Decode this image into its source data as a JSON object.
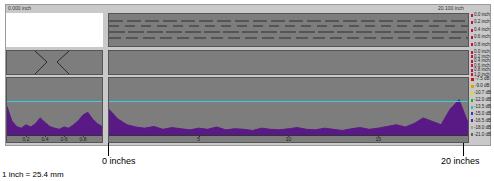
{
  "header": {
    "left": "0.000 inch",
    "right": "20.100 inch"
  },
  "scales": {
    "top": [
      "0.0 inch",
      "0.2 inch",
      "0.4 inch",
      "0.6 inch",
      "0.8 inch"
    ],
    "middle": [
      "0.0 inch",
      "0.2 inch",
      "0.4 inch",
      "0.6 inch",
      "0.8 inch",
      "1.0 inch"
    ],
    "bottom": [
      "-7.5 dB",
      "-9.0 dB",
      "-10.7 dB",
      "-12.0 dB",
      "-13.5 dB",
      "-15.0 dB",
      "-16.5 dB",
      "-18.0 dB",
      "-21.0 dB"
    ]
  },
  "annotations": {
    "start": "0 inches",
    "end": "20 inches",
    "conversion": "1 inch = 25.4 mm"
  },
  "chart_data": [
    {
      "type": "line",
      "x": [
        0,
        0.05,
        0.1,
        0.15,
        0.2,
        0.25,
        0.3,
        0.35,
        0.4,
        0.45,
        0.5,
        0.55,
        0.6,
        0.65,
        0.7,
        0.75,
        0.8,
        0.85,
        0.9,
        0.95,
        1.0
      ],
      "values": [
        50,
        25,
        15,
        12,
        18,
        14,
        20,
        30,
        22,
        15,
        12,
        10,
        14,
        12,
        18,
        25,
        35,
        40,
        28,
        20,
        15
      ],
      "xlim": [
        0,
        1
      ],
      "xticks": [
        0.2,
        0.4,
        0.6,
        0.8
      ],
      "ylim": [
        0,
        100
      ],
      "threshold": 60,
      "color": "#5a1a86",
      "tick_labels": "x"
    },
    {
      "type": "line",
      "x": [
        0,
        0.5,
        1,
        1.5,
        2,
        2.5,
        3,
        3.5,
        4,
        4.5,
        5,
        5.5,
        6,
        6.5,
        7,
        7.5,
        8,
        8.5,
        9,
        9.5,
        10,
        10.5,
        11,
        11.5,
        12,
        12.5,
        13,
        13.5,
        14,
        14.5,
        15,
        15.5,
        16,
        16.5,
        17,
        17.5,
        18,
        18.5,
        19,
        19.5,
        20
      ],
      "values": [
        45,
        28,
        18,
        14,
        12,
        15,
        10,
        13,
        11,
        9,
        12,
        10,
        14,
        9,
        11,
        10,
        8,
        12,
        10,
        9,
        11,
        13,
        10,
        9,
        12,
        10,
        8,
        11,
        13,
        10,
        12,
        15,
        18,
        14,
        20,
        30,
        24,
        18,
        45,
        62,
        22
      ],
      "xlim": [
        0,
        20
      ],
      "xticks": [
        5,
        10,
        15
      ],
      "ylim": [
        0,
        100
      ],
      "threshold": 60,
      "color": "#5a1a86",
      "tick_labels": "x"
    }
  ]
}
